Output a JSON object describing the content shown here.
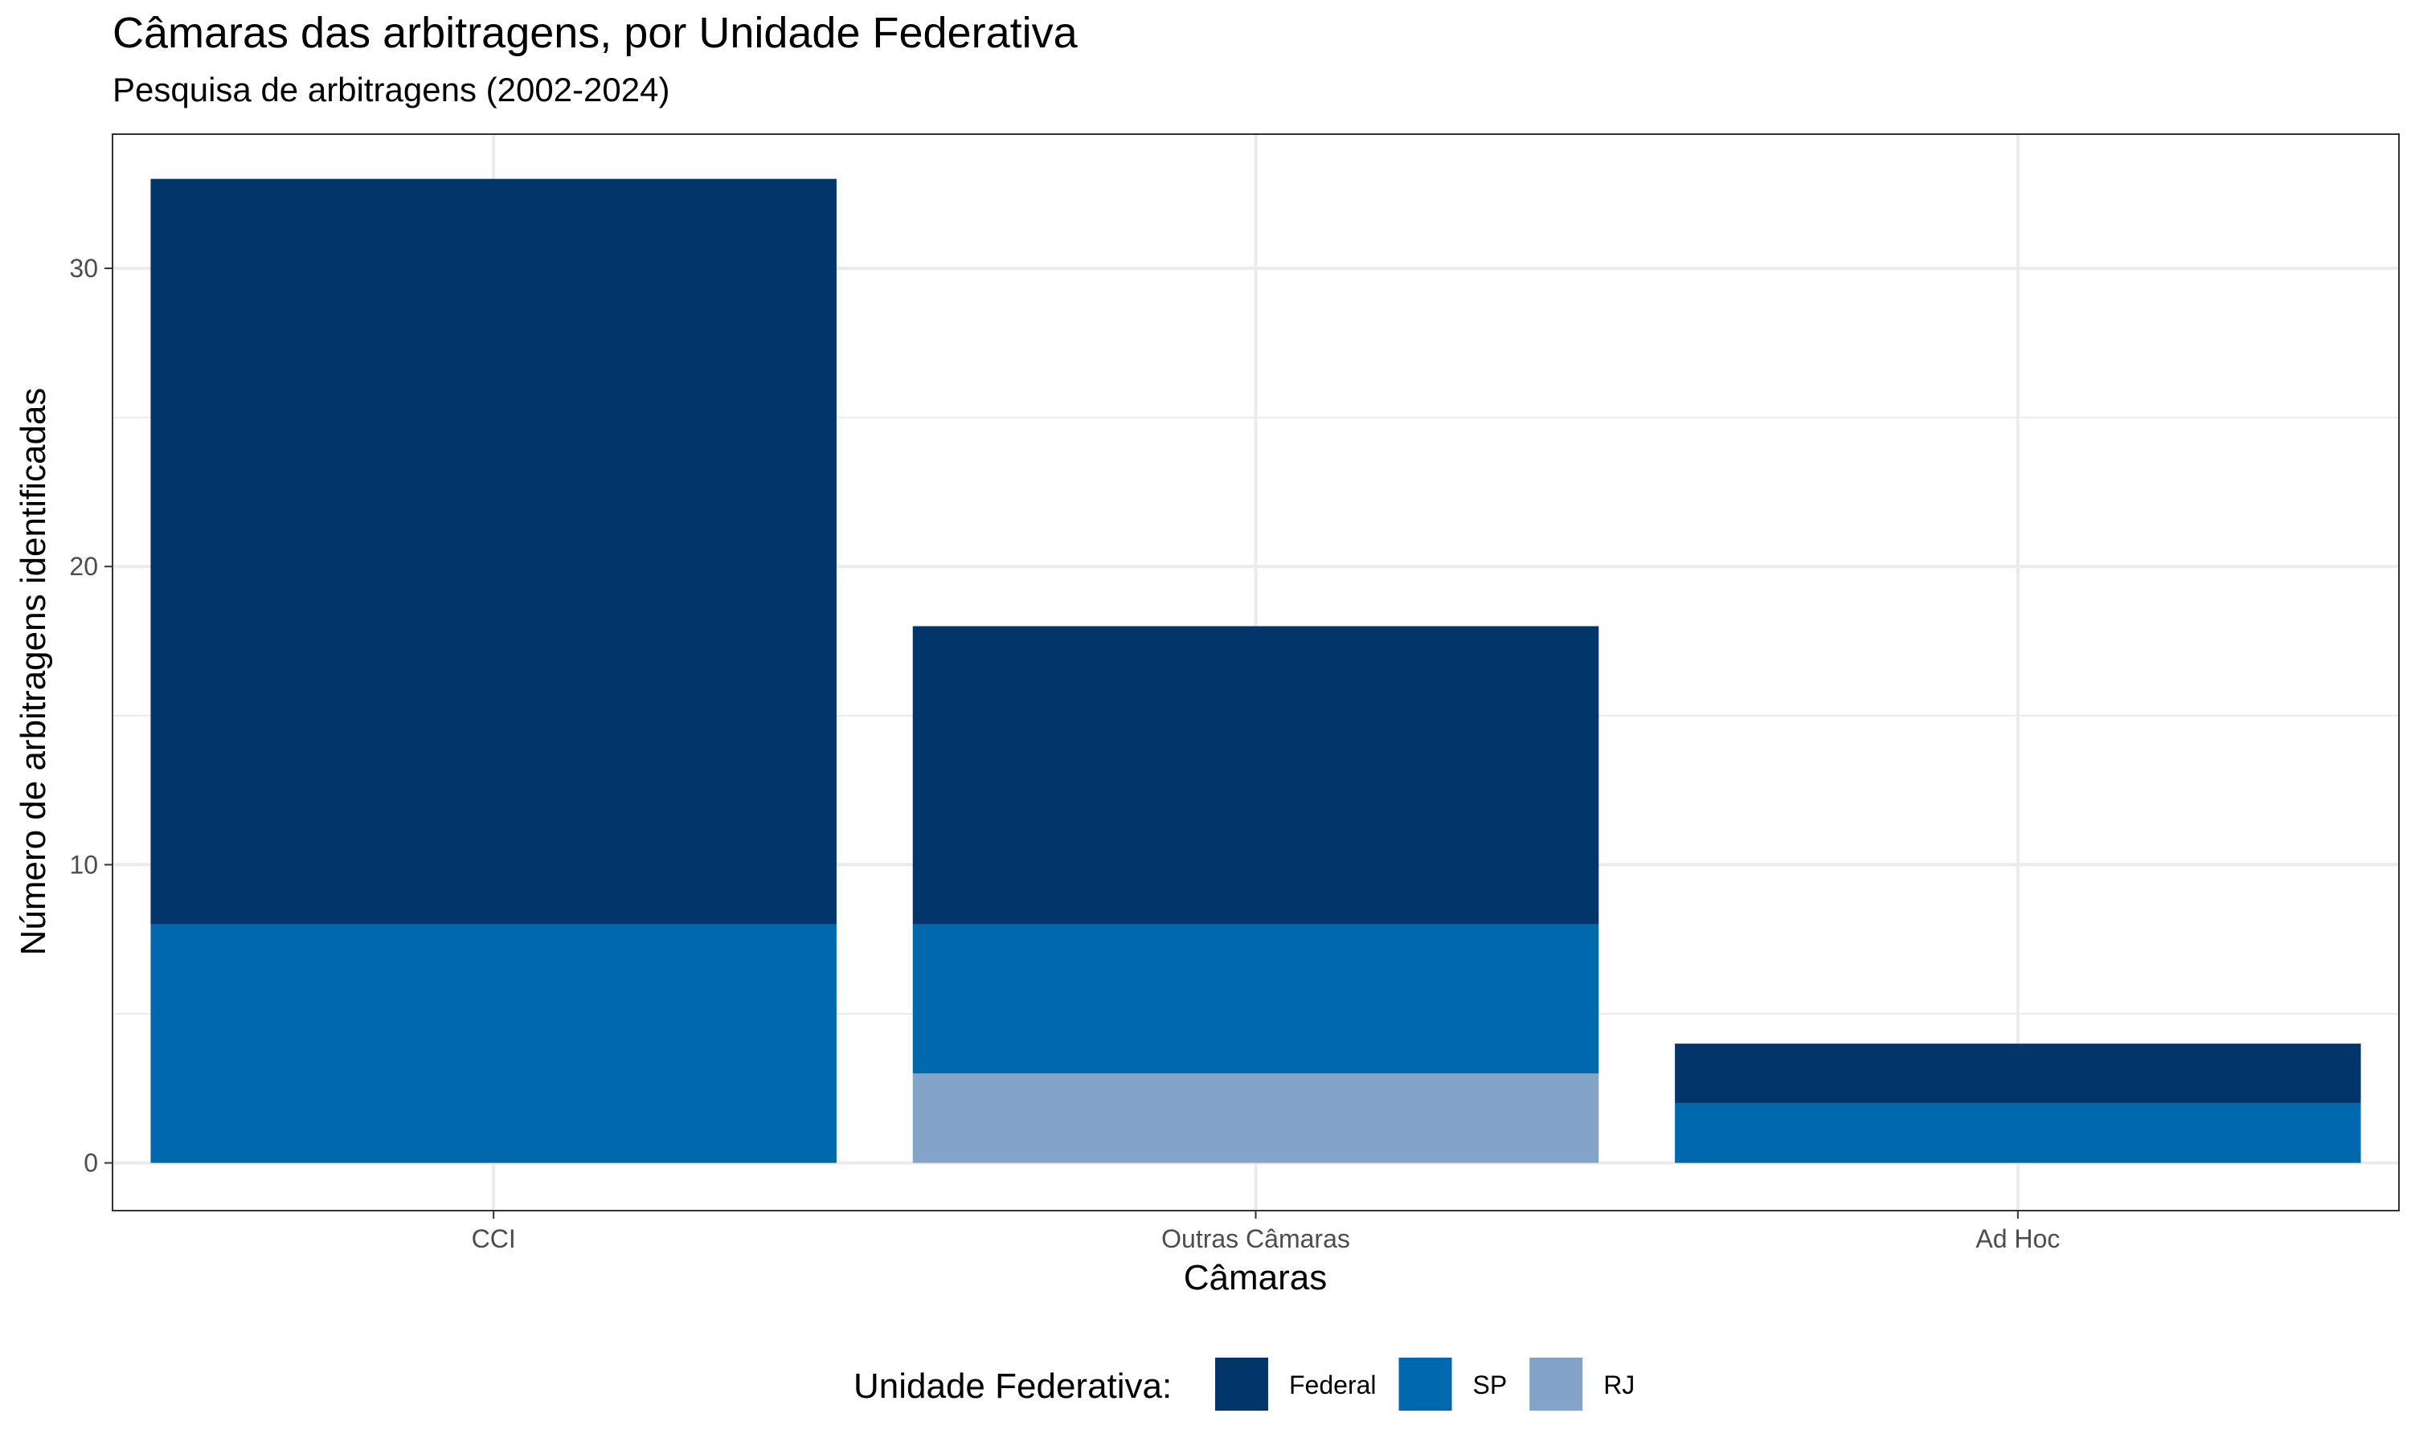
{
  "chart_data": {
    "type": "bar",
    "stacked": true,
    "title": "Câmaras das arbitragens, por Unidade Federativa",
    "subtitle": "Pesquisa de arbitragens (2002-2024)",
    "xlabel": "Câmaras",
    "ylabel": "Número de arbitragens identificadas",
    "categories": [
      "CCI",
      "Outras Câmaras",
      "Ad Hoc"
    ],
    "series": [
      {
        "name": "RJ",
        "color": "#84A3C9",
        "values": [
          0,
          3,
          0
        ]
      },
      {
        "name": "SP",
        "color": "#0069AD",
        "values": [
          8,
          5,
          2
        ]
      },
      {
        "name": "Federal",
        "color": "#02356A",
        "values": [
          25,
          10,
          2
        ]
      }
    ],
    "ylim": [
      -1.6,
      34.5
    ],
    "yticks": [
      0,
      10,
      20,
      30
    ],
    "grid": true,
    "legend": {
      "title": "Unidade Federativa:",
      "position": "bottom",
      "items": [
        {
          "label": "Federal",
          "color": "#02356A"
        },
        {
          "label": "SP",
          "color": "#0069AD"
        },
        {
          "label": "RJ",
          "color": "#84A3C9"
        }
      ]
    }
  }
}
